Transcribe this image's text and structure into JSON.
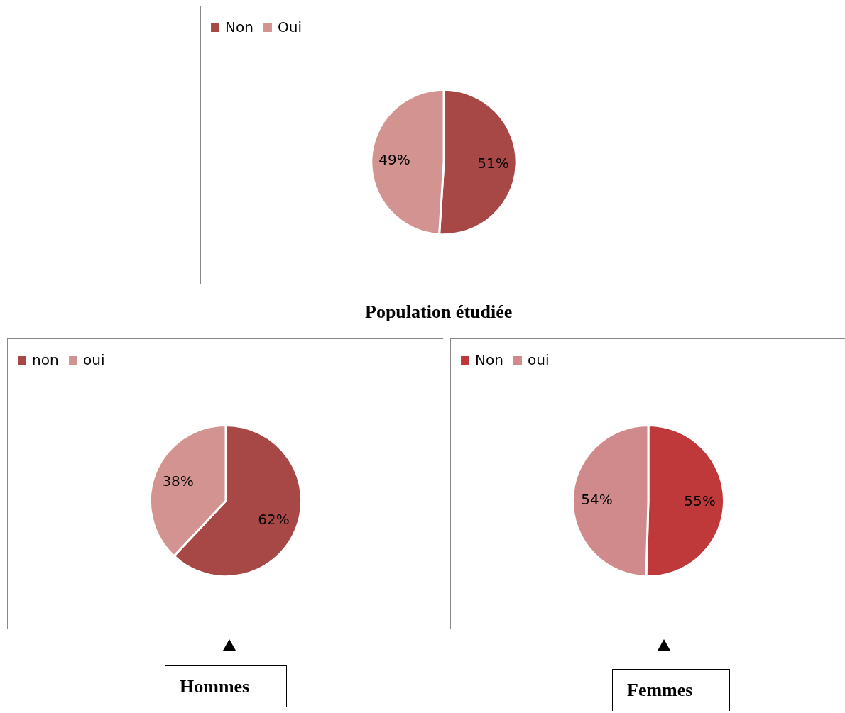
{
  "chart_data": [
    {
      "type": "pie",
      "title": "Population étudiée",
      "categories": [
        "Non",
        "Oui"
      ],
      "values": [
        51,
        49
      ],
      "value_labels": [
        "51%",
        "49%"
      ],
      "colors": [
        "#a84846",
        "#d39391"
      ],
      "legend": "top"
    },
    {
      "type": "pie",
      "title": "Hommes",
      "categories": [
        "non",
        "oui"
      ],
      "values": [
        62,
        38
      ],
      "value_labels": [
        "62%",
        "38%"
      ],
      "colors": [
        "#a84846",
        "#d39391"
      ],
      "legend": "top"
    },
    {
      "type": "pie",
      "title": "Femmes",
      "categories": [
        "Non",
        "oui"
      ],
      "values": [
        55,
        54
      ],
      "value_labels": [
        "55%",
        "54%"
      ],
      "colors": [
        "#c0393a",
        "#d08a8c"
      ],
      "legend": "top"
    }
  ]
}
